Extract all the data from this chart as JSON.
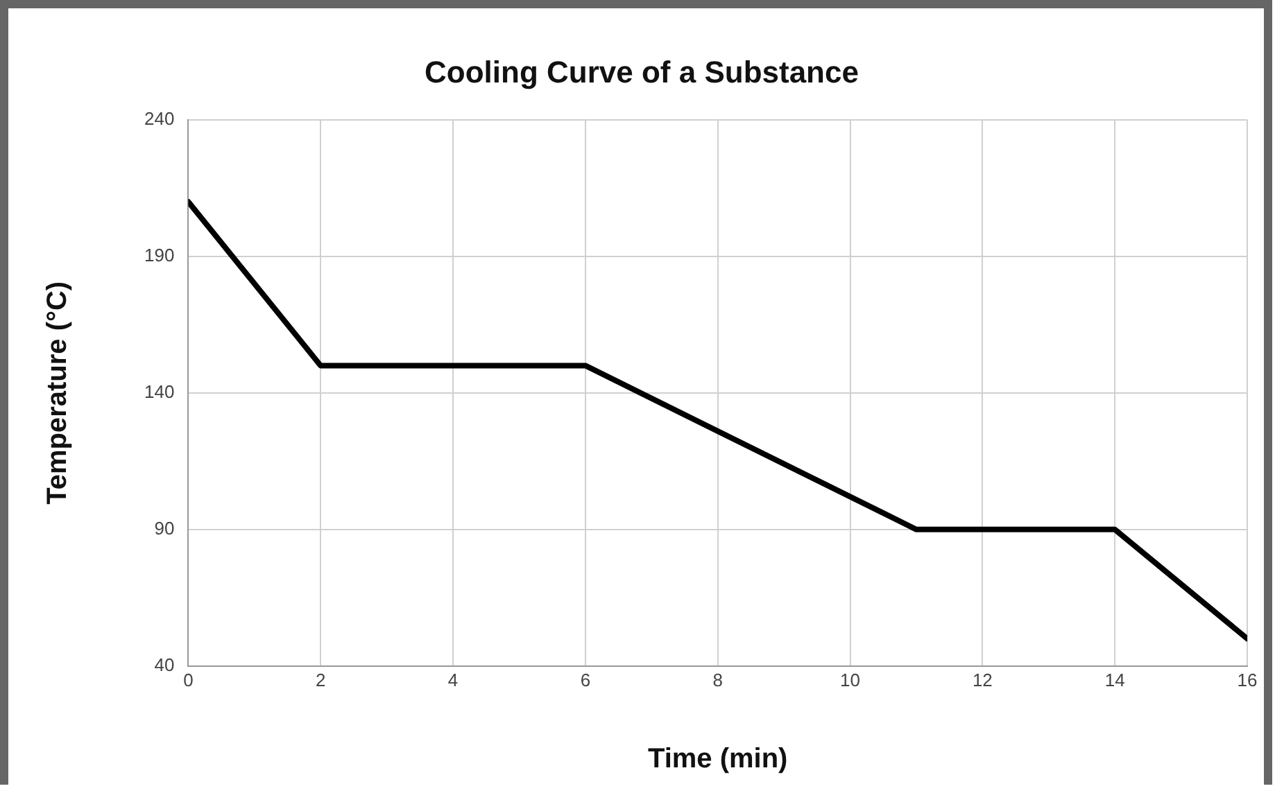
{
  "chart_data": {
    "type": "line",
    "title": "Cooling Curve of a Substance",
    "xlabel": "Time (min)",
    "ylabel": "Temperature (°C)",
    "x": [
      0,
      2,
      6,
      11,
      14,
      16
    ],
    "series": [
      {
        "color": "#000000",
        "values": [
          210,
          150,
          150,
          90,
          90,
          50
        ]
      }
    ],
    "xlim": [
      0,
      16
    ],
    "xticks": [
      0,
      2,
      4,
      6,
      8,
      10,
      12,
      14,
      16
    ],
    "ylim": [
      40,
      240
    ],
    "yticks": [
      40,
      90,
      140,
      190,
      240
    ],
    "grid": true,
    "legend": false,
    "marker": "none",
    "line_style": "solid"
  }
}
